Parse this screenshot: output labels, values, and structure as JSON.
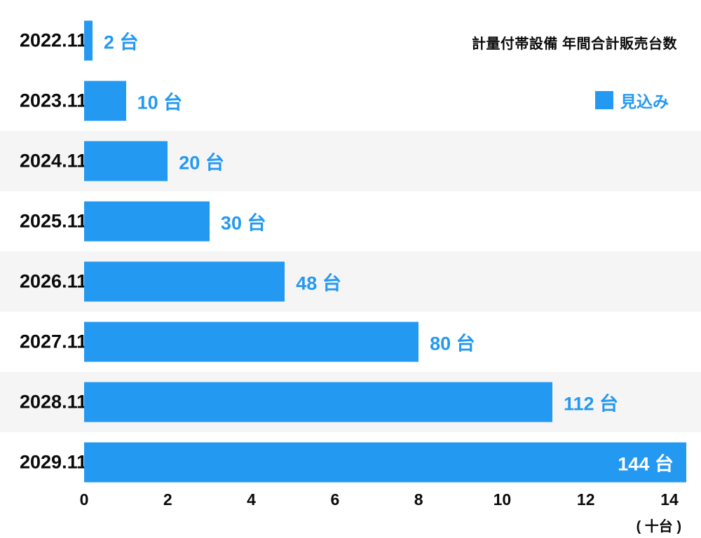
{
  "chart_data": {
    "type": "bar",
    "orientation": "horizontal",
    "title": "計量付帯設備 年間合計販売台数",
    "legend": [
      {
        "label": "見込み",
        "color": "#2499F2"
      }
    ],
    "categories": [
      "2022.11",
      "2023.11",
      "2024.11",
      "2025.11",
      "2026.11",
      "2027.11",
      "2028.11",
      "2029.11"
    ],
    "values": [
      2,
      10,
      20,
      30,
      48,
      80,
      112,
      144
    ],
    "value_labels": [
      "2 台",
      "10 台",
      "20 台",
      "30 台",
      "48 台",
      "80 台",
      "112 台",
      "144 台"
    ],
    "value_unit": "台",
    "x_ticks": [
      0,
      2,
      4,
      6,
      8,
      10,
      12,
      14
    ],
    "x_unit": "( 十台 )",
    "x_axis_note": "x axis in units of 10 units (十台)",
    "xlim": [
      0,
      14.7
    ],
    "bar_color": "#2499F2",
    "stripe_color": "#f5f5f6",
    "stripe_rows": [
      2,
      4,
      6
    ],
    "last_value_label_inside": true,
    "grid": false,
    "legend_position": "top-right"
  }
}
